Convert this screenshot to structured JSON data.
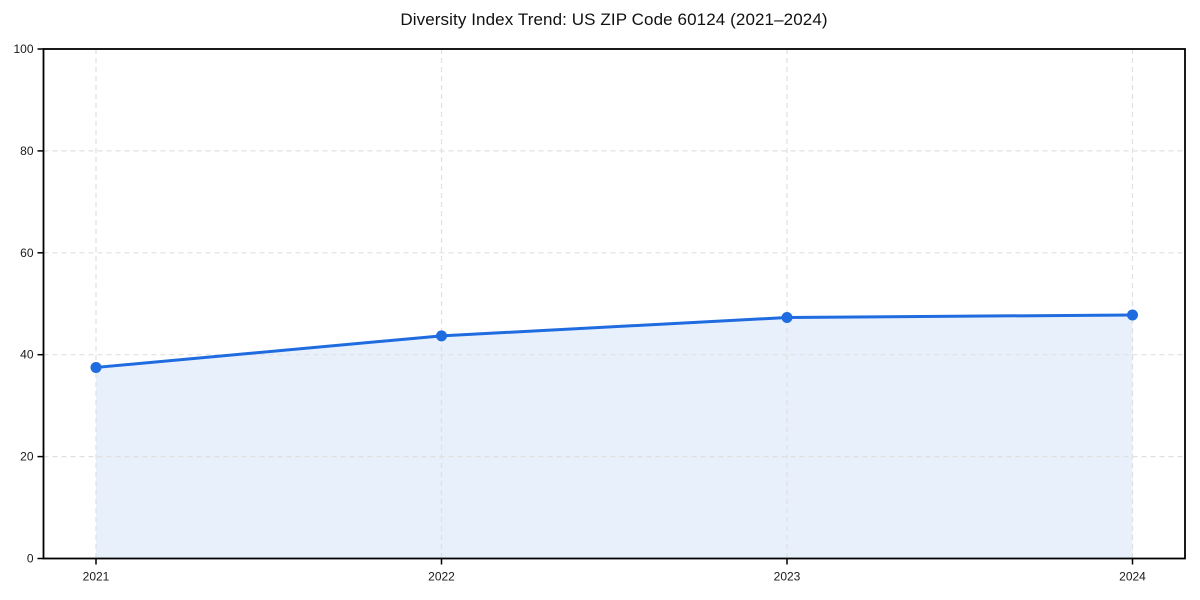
{
  "chart_data": {
    "type": "line",
    "title": "Diversity Index Trend: US ZIP Code 60124 (2021–2024)",
    "categories": [
      "2021",
      "2022",
      "2023",
      "2024"
    ],
    "values": [
      37.5,
      43.7,
      47.3,
      47.8
    ],
    "xlabel": "",
    "ylabel": "",
    "ylim": [
      0,
      100
    ],
    "yticks": [
      0,
      20,
      40,
      60,
      80,
      100
    ],
    "grid": true,
    "grid_style": "dashed",
    "legend": false,
    "area_fill": true,
    "marker": "circle",
    "colors": {
      "line": "#1f6be0",
      "marker": "#1f6be0",
      "area": "#1f6be0",
      "area_opacity": 0.1,
      "grid": "#e0e0e0",
      "spine": "#000000",
      "tick_label": "#1a1a1a",
      "background": "#ffffff"
    }
  }
}
